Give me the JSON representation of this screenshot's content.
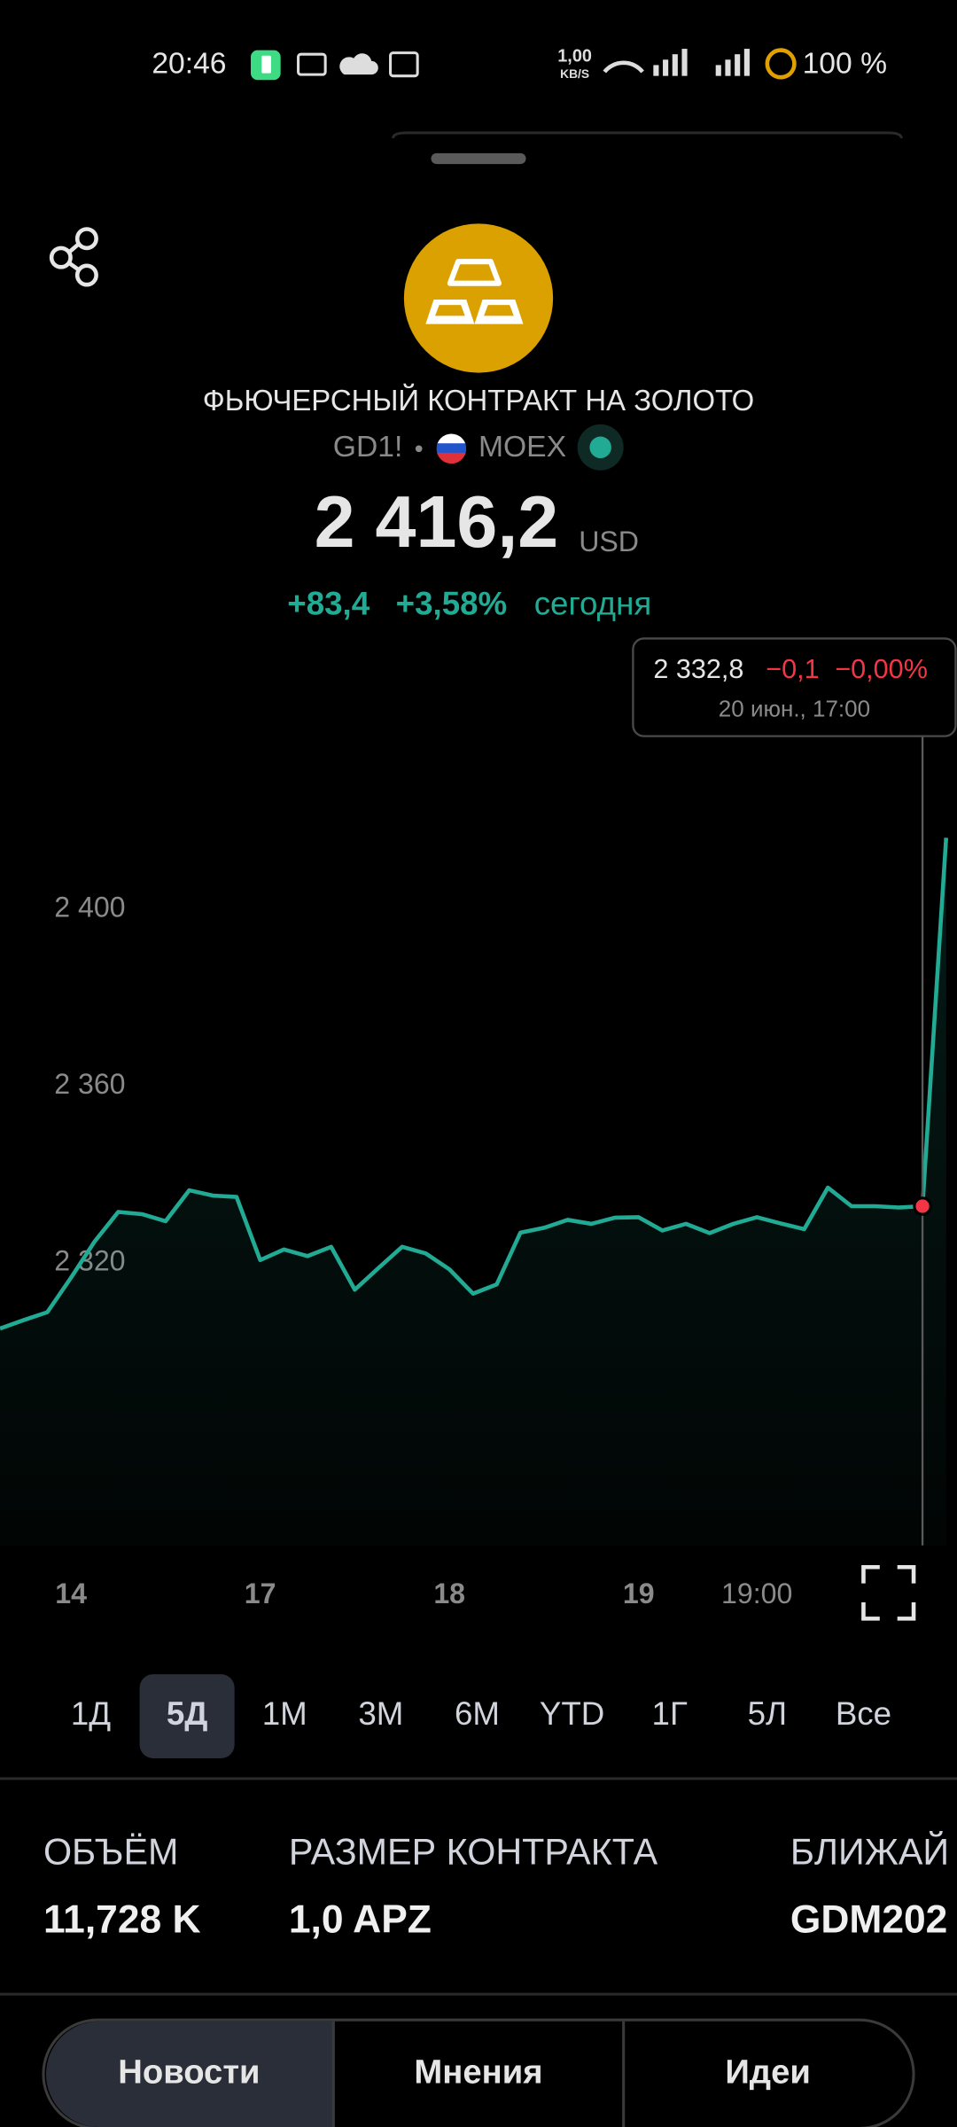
{
  "status_bar": {
    "time": "20:46",
    "speed": "1,00",
    "speed_unit": "KB/S",
    "battery": "100 %"
  },
  "header": {
    "title": "ФЬЮЧЕРСНЫЙ КОНТРАКТ НА ЗОЛОТО",
    "ticker": "GD1!",
    "exchange": "MOEX",
    "price": "2 416,2",
    "currency": "USD",
    "change": "+83,4",
    "change_pct": "+3,58%",
    "period": "сегодня"
  },
  "chart_data": {
    "type": "line",
    "color": "#22ab94",
    "grid": false,
    "categories": [
      null,
      null,
      null,
      "14",
      null,
      null,
      null,
      null,
      null,
      null,
      null,
      "17",
      null,
      null,
      null,
      null,
      null,
      null,
      null,
      "18",
      null,
      null,
      null,
      null,
      null,
      null,
      null,
      "19",
      null,
      null,
      null,
      null,
      "19:00",
      null,
      null,
      null,
      null,
      null,
      null,
      null,
      null
    ],
    "series": [
      {
        "name": "GD1!",
        "color": "#22ab94",
        "values": [
          2305.1,
          2307.0,
          2308.8,
          2316.6,
          2324.8,
          2331.5,
          2331.0,
          2329.4,
          2336.4,
          2335.2,
          2334.9,
          2320.6,
          2323.0,
          2321.5,
          2323.6,
          2313.9,
          2318.8,
          2323.6,
          2322.1,
          2318.5,
          2313.0,
          2315.1,
          2326.8,
          2327.9,
          2329.7,
          2328.8,
          2330.2,
          2330.3,
          2327.3,
          2328.8,
          2326.7,
          2328.8,
          2330.3,
          2328.9,
          2327.6,
          2337.0,
          2332.8,
          2332.8,
          2332.5,
          2332.8,
          2416.2
        ]
      }
    ],
    "ylim": [
      2256,
      2434
    ],
    "yticks": [
      {
        "value": 2320,
        "label": "2 320"
      },
      {
        "value": 2360,
        "label": "2 360"
      },
      {
        "value": 2400,
        "label": "2 400"
      }
    ],
    "tooltip": {
      "price": {
        "value": 2332.8,
        "label": "2 332,8"
      },
      "change": "−0,1",
      "change_pct": "−0,00%",
      "time": "20 июн., 17:00"
    }
  },
  "periods": {
    "items": [
      "1Д",
      "5Д",
      "1М",
      "3М",
      "6М",
      "YTD",
      "1Г",
      "5Л",
      "Все"
    ],
    "selected": "5Д"
  },
  "stats": [
    {
      "label": "ОБЪЁМ",
      "value": "11,728 K"
    },
    {
      "label": "РАЗМЕР КОНТРАКТА",
      "value": "1,0 APZ"
    },
    {
      "label": "БЛИЖАЙ",
      "value": "GDM202"
    }
  ],
  "tabs": {
    "items": [
      "Новости",
      "Мнения",
      "Идеи"
    ],
    "selected": "Новости"
  }
}
